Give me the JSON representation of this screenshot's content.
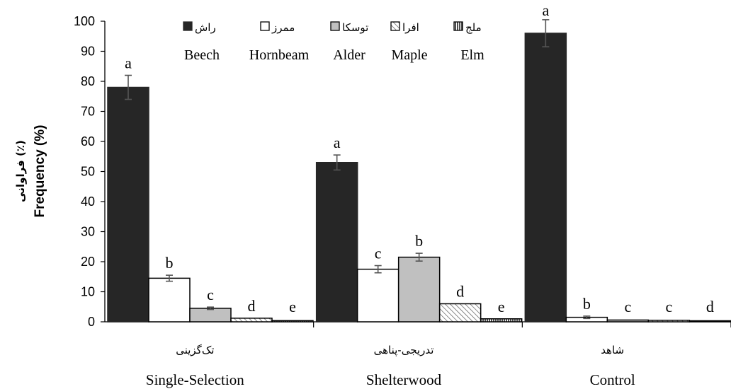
{
  "chart_data": {
    "type": "bar",
    "ylabel_fa": "فراوانی (٪)",
    "ylabel_en": "Frequency (%)",
    "ylim": [
      0,
      100
    ],
    "yticks": [
      "0",
      "10",
      "20",
      "30",
      "40",
      "50",
      "60",
      "70",
      "80",
      "90",
      "100"
    ],
    "categories": [
      {
        "fa": "تک‌گزینی",
        "en": "Single-Selection"
      },
      {
        "fa": "تدریجی-پناهی",
        "en": "Shelterwood"
      },
      {
        "fa": "شاهد",
        "en": "Control"
      }
    ],
    "series": [
      {
        "name_fa": "راش",
        "name_en": "Beech",
        "pattern": "solid-dark",
        "values": [
          78,
          53,
          96
        ],
        "errors": [
          4,
          2.5,
          4.5
        ],
        "letters": [
          "a",
          "a",
          "a"
        ]
      },
      {
        "name_fa": "ممرز",
        "name_en": "Hornbeam",
        "pattern": "white",
        "values": [
          14.5,
          17.5,
          1.5
        ],
        "errors": [
          1,
          1.2,
          0.4
        ],
        "letters": [
          "b",
          "c",
          "b"
        ]
      },
      {
        "name_fa": "توسکا",
        "name_en": "Alder",
        "pattern": "light-gray",
        "values": [
          4.5,
          21.5,
          0.6
        ],
        "errors": [
          0.4,
          1.3,
          0
        ],
        "letters": [
          "c",
          "b",
          "c"
        ]
      },
      {
        "name_fa": "افرا",
        "name_en": "Maple",
        "pattern": "diagonal-hatch",
        "values": [
          1.2,
          6,
          0.5
        ],
        "errors": [
          0,
          0,
          0
        ],
        "letters": [
          "d",
          "d",
          "c"
        ]
      },
      {
        "name_fa": "ملج",
        "name_en": "Elm",
        "pattern": "vertical-stripes",
        "values": [
          0.4,
          1,
          0.2
        ],
        "errors": [
          0,
          0,
          0
        ],
        "letters": [
          "e",
          "e",
          "d"
        ]
      }
    ],
    "legend_position": "top",
    "grid": false,
    "colors": {
      "dark": "#262626",
      "light_gray": "#c0c0c0",
      "error_bar": "#555555"
    }
  }
}
